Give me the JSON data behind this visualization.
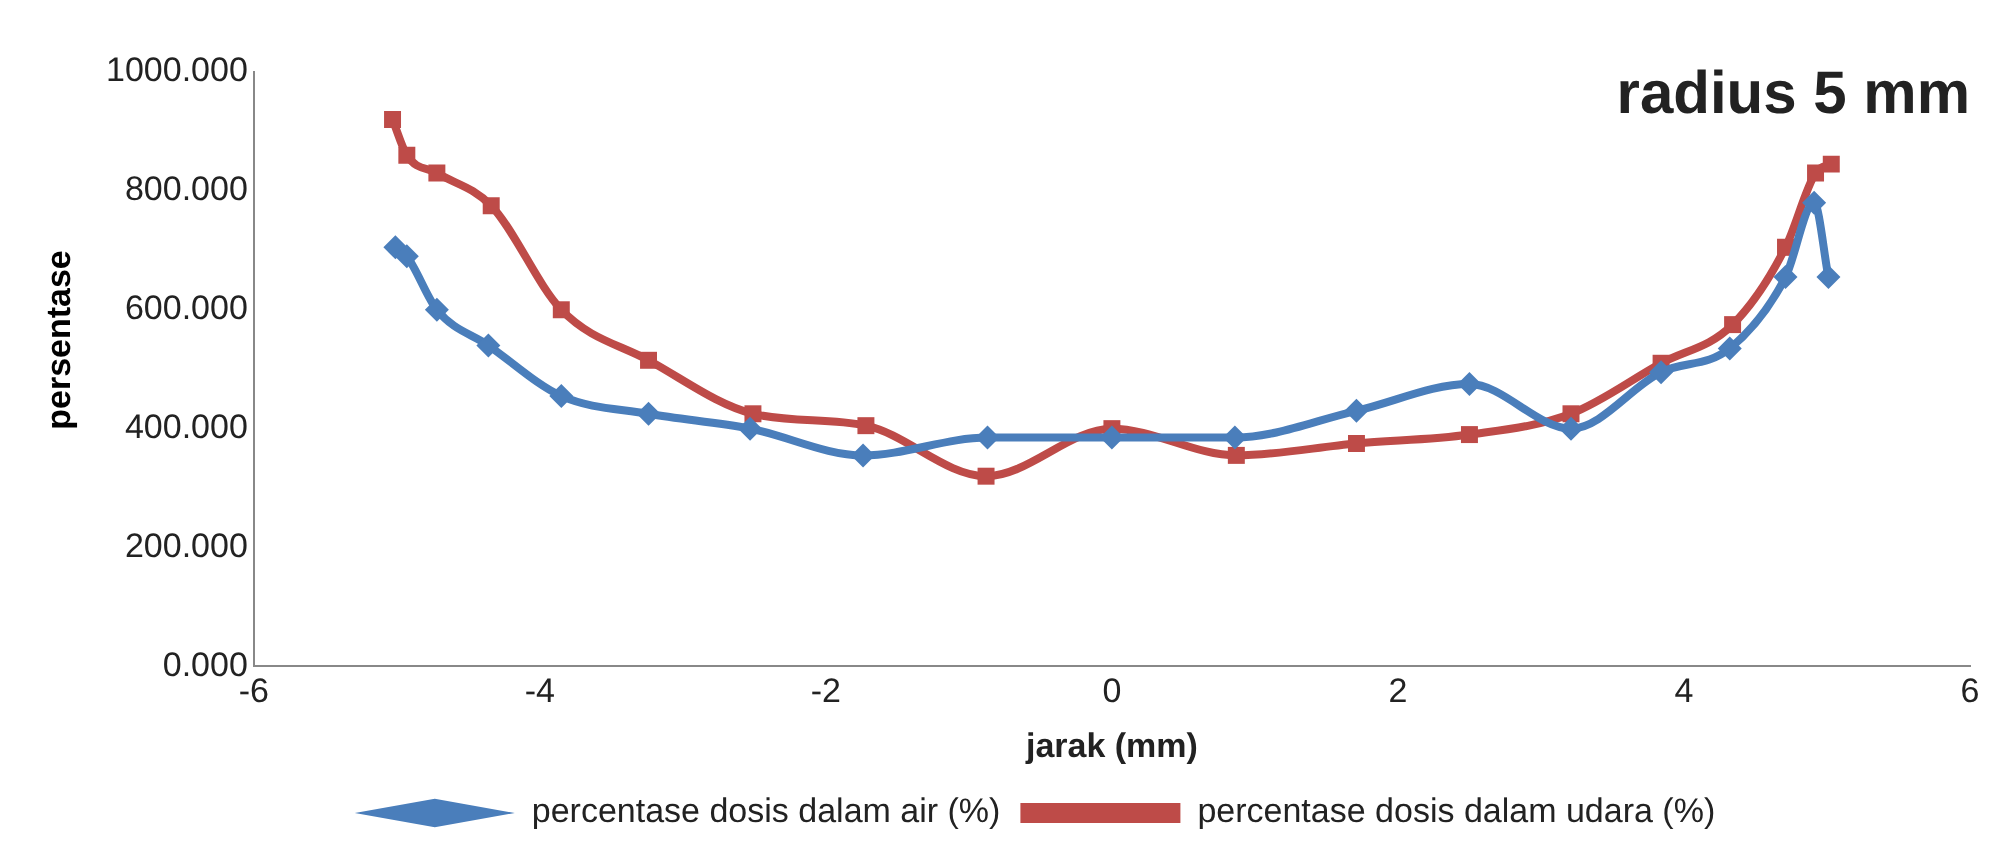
{
  "chart_data": {
    "type": "line",
    "title": "radius 5 mm",
    "xlabel": "jarak (mm)",
    "ylabel": "persentase",
    "xlim": [
      -6,
      6
    ],
    "xticks": [
      -6,
      -4,
      -2,
      0,
      2,
      4,
      6
    ],
    "ylim": [
      0,
      1000
    ],
    "yticks": [
      {
        "value": 0,
        "label": "0.000"
      },
      {
        "value": 200,
        "label": "200.000"
      },
      {
        "value": 400,
        "label": "400.000"
      },
      {
        "value": 600,
        "label": "600.000"
      },
      {
        "value": 800,
        "label": "800.000"
      },
      {
        "value": 1000,
        "label": "1000.000"
      }
    ],
    "grid": false,
    "legend": "bottom",
    "line_style": "solid",
    "series": [
      {
        "name": "percentase dosis dalam air (%)",
        "color": "#4a7ebb",
        "marker": "diamond",
        "x": [
          -5.01,
          -4.93,
          -4.72,
          -4.36,
          -3.85,
          -3.24,
          -2.53,
          -1.74,
          -0.87,
          0,
          0.86,
          1.71,
          2.5,
          3.21,
          3.84,
          4.32,
          4.71,
          4.91,
          5.01
        ],
        "values": [
          705,
          690,
          600,
          540,
          455,
          425,
          400,
          355,
          385,
          385,
          385,
          430,
          475,
          400,
          495,
          535,
          655,
          780,
          655
        ]
      },
      {
        "name": "percentase dosis dalam udara (%)",
        "color": "#be4b48",
        "marker": "square",
        "x": [
          -5.03,
          -4.93,
          -4.72,
          -4.34,
          -3.85,
          -3.24,
          -2.51,
          -1.72,
          -0.88,
          0,
          0.87,
          1.71,
          2.5,
          3.21,
          3.84,
          4.34,
          4.71,
          4.92,
          5.03
        ],
        "values": [
          920,
          860,
          830,
          775,
          600,
          515,
          425,
          405,
          320,
          400,
          355,
          375,
          390,
          425,
          510,
          575,
          705,
          830,
          845
        ]
      }
    ]
  }
}
